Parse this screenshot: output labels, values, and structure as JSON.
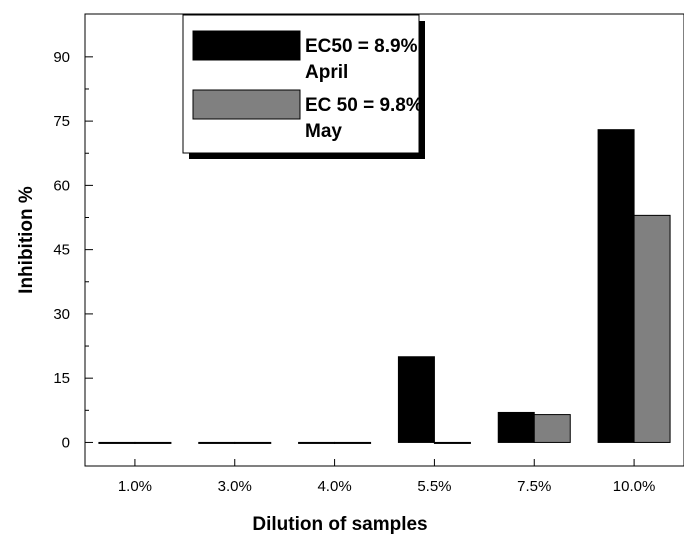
{
  "chart_data": {
    "type": "bar",
    "title": "",
    "xlabel": "Dilution of samples",
    "ylabel": "Inhibition %",
    "categories": [
      "1.0%",
      "3.0%",
      "4.0%",
      "5.5%",
      "7.5%",
      "10.0%"
    ],
    "series": [
      {
        "name": "EC50 = 8.9% April",
        "legend_lines": [
          "EC50 = 8.9%",
          "April"
        ],
        "color": "#000000",
        "values": [
          0,
          0,
          0,
          20,
          7,
          73
        ]
      },
      {
        "name": "EC 50 = 9.8% May",
        "legend_lines": [
          "EC 50 = 9.8%",
          "May"
        ],
        "color": "#808080",
        "values": [
          0,
          0,
          0,
          0,
          6.5,
          53
        ]
      }
    ],
    "ylim": [
      -5.5,
      100
    ],
    "yticks": [
      0,
      15,
      30,
      45,
      60,
      75,
      90
    ],
    "ytick_labels": [
      "0",
      "15",
      "30",
      "45",
      "60",
      "75",
      "90"
    ],
    "grid": false,
    "legend_position": "top-center"
  }
}
